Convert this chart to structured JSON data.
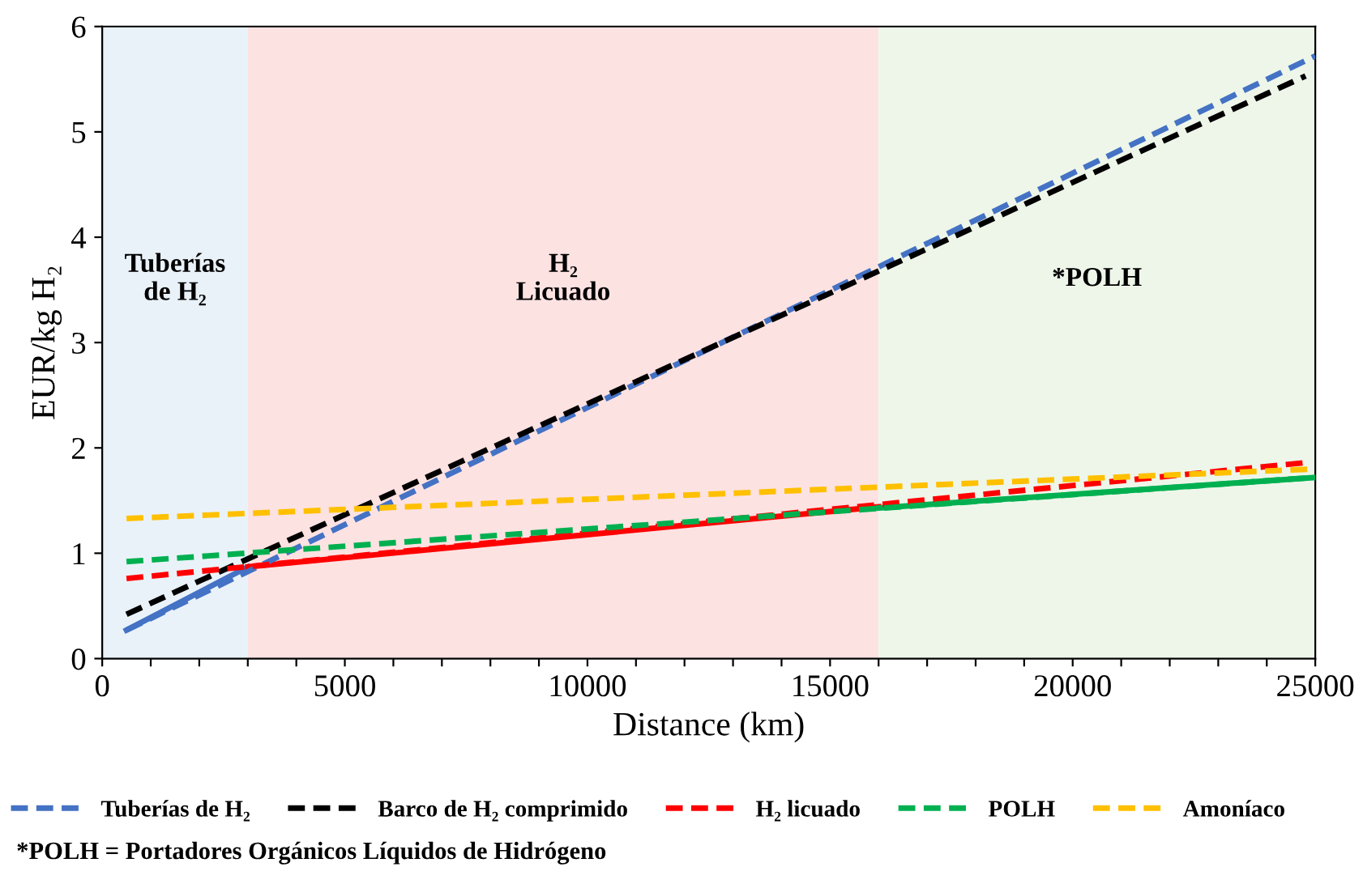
{
  "chart_data": {
    "type": "line",
    "xlabel": "Distance (km)",
    "ylabel": "EUR/kg H₂",
    "xlim": [
      0,
      25000
    ],
    "ylim": [
      0,
      6
    ],
    "xticks": [
      0,
      {
        "value": 1000,
        "label": null
      },
      {
        "value": 2000,
        "label": null
      },
      {
        "value": 3000,
        "label": null
      },
      {
        "value": 4000,
        "label": null
      },
      5000,
      {
        "value": 6000,
        "label": null
      },
      {
        "value": 7000,
        "label": null
      },
      {
        "value": 8000,
        "label": null
      },
      {
        "value": 9000,
        "label": null
      },
      10000,
      {
        "value": 11000,
        "label": null
      },
      {
        "value": 12000,
        "label": null
      },
      {
        "value": 13000,
        "label": null
      },
      {
        "value": 14000,
        "label": null
      },
      15000,
      {
        "value": 16000,
        "label": null
      },
      {
        "value": 17000,
        "label": null
      },
      {
        "value": 18000,
        "label": null
      },
      {
        "value": 19000,
        "label": null
      },
      20000,
      {
        "value": 21000,
        "label": null
      },
      {
        "value": 22000,
        "label": null
      },
      {
        "value": 23000,
        "label": null
      },
      {
        "value": 24000,
        "label": null
      },
      25000
    ],
    "yticks": [
      0,
      1,
      2,
      3,
      4,
      5,
      6
    ],
    "grid": false,
    "legend": "bottom",
    "marker": "none",
    "bands": [
      {
        "axis": "x",
        "from": 0,
        "to": 3000,
        "label": "Tuberías\nde H₂",
        "color": "#eaf2f9"
      },
      {
        "axis": "x",
        "from": 3000,
        "to": 16000,
        "label": "H₂\nLicuado",
        "color": "#fde2e2"
      },
      {
        "axis": "x",
        "from": 16000,
        "to": 25000,
        "label": "*POLH",
        "color": "#eef6ea"
      }
    ],
    "series": [
      {
        "color": "#4472c4",
        "line_style": "solid",
        "x": [
          500,
          3000
        ],
        "values": [
          0.27,
          0.87
        ]
      },
      {
        "color": "#ff0000",
        "line_style": "solid",
        "x": [
          3000,
          16000
        ],
        "values": [
          0.87,
          1.44
        ]
      },
      {
        "color": "#00b050",
        "line_style": "solid",
        "x": [
          16000,
          25000
        ],
        "values": [
          1.43,
          1.72
        ]
      },
      {
        "name": "Tuberías de H₂",
        "color": "#4472c4",
        "line_style": "dashed",
        "x": [
          500,
          25000
        ],
        "values": [
          0.27,
          5.72
        ]
      },
      {
        "name": "Barco de H₂ comprimido",
        "color": "#000000",
        "line_style": "dashed",
        "x": [
          500,
          24800
        ],
        "values": [
          0.42,
          5.53
        ]
      },
      {
        "name": "H₂ licuado",
        "color": "#ff0000",
        "line_style": "dashed",
        "x": [
          500,
          24800
        ],
        "values": [
          0.76,
          1.86
        ]
      },
      {
        "name": "POLH",
        "color": "#00b050",
        "line_style": "dashed",
        "x": [
          500,
          25000
        ],
        "values": [
          0.92,
          1.72
        ]
      },
      {
        "name": "Amoníaco",
        "color": "#ffc000",
        "line_style": "dashed",
        "x": [
          500,
          25000
        ],
        "values": [
          1.33,
          1.8
        ]
      }
    ],
    "annotations": [
      "*POLH = Portadores Orgánicos Líquidos de Hidrógeno"
    ]
  }
}
